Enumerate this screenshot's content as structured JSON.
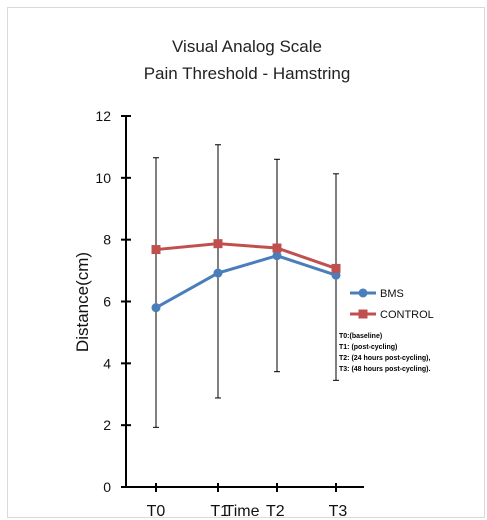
{
  "chart_data": {
    "type": "line",
    "title": "Visual Analog Scale",
    "subtitle": "Pain Threshold - Hamstring",
    "xlabel": "Time",
    "ylabel": "Distance(cm)",
    "categories": [
      "T0",
      "T1",
      "T2",
      "T3"
    ],
    "ylim": [
      0,
      12
    ],
    "yticks": [
      0,
      2,
      4,
      6,
      8,
      10,
      12
    ],
    "grid": false,
    "legend_position": "right",
    "series": [
      {
        "name": "BMS",
        "color": "#4a7ebb",
        "marker": "circle",
        "values": [
          5.8,
          6.92,
          7.48,
          6.85
        ],
        "error_high": [
          10.65,
          11.07,
          10.6,
          10.13
        ],
        "error_low": [
          1.93,
          2.88,
          3.73,
          3.45
        ]
      },
      {
        "name": "CONTROL",
        "color": "#c0504d",
        "marker": "square",
        "values": [
          7.68,
          7.87,
          7.73,
          7.07
        ]
      }
    ],
    "annotation": [
      "T0:(baseline)",
      "T1: (post-cycling)",
      "T2: (24 hours post-cycling),",
      "T3: (48 hours post-cycling)."
    ]
  }
}
